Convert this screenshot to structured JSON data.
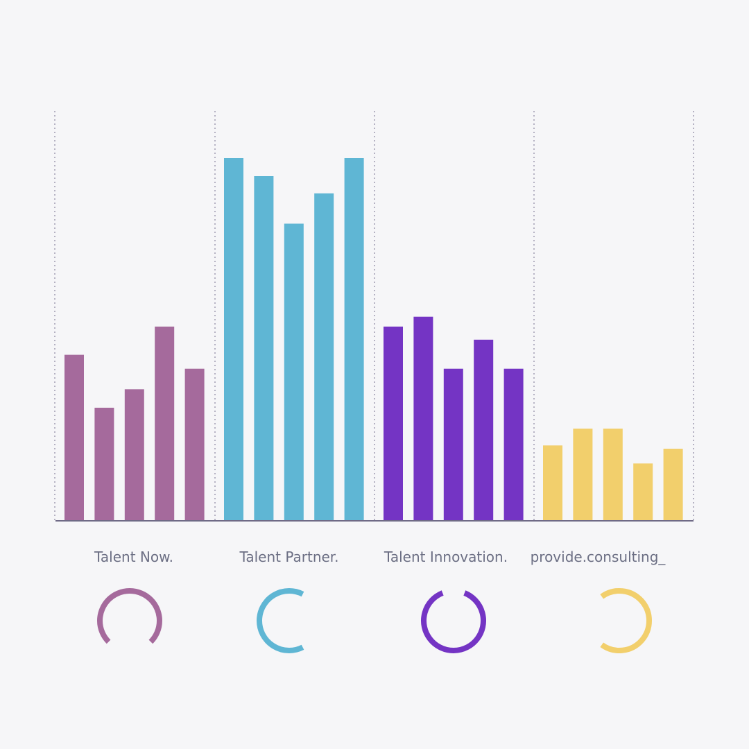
{
  "chart_data": {
    "type": "bar",
    "title": "",
    "xlabel": "",
    "ylabel": "",
    "ylim": [
      0,
      100
    ],
    "grid": false,
    "groups": [
      {
        "name": "Talent Now.",
        "color": "#a56a9c",
        "values": [
          40.5,
          27.6,
          32.1,
          47.4,
          37.1
        ],
        "ring_fraction": 0.75
      },
      {
        "name": "Talent Partner.",
        "color": "#5fb6d4",
        "values": [
          88.5,
          84.1,
          72.5,
          79.9,
          88.5
        ],
        "ring_fraction": 0.65
      },
      {
        "name": "Talent Innovation.",
        "color": "#7434c4",
        "values": [
          47.4,
          49.8,
          37.1,
          44.2,
          37.1
        ],
        "ring_fraction": 0.88
      },
      {
        "name": "provide.consulting_",
        "color": "#f2cf6c",
        "values": [
          18.4,
          22.5,
          22.5,
          14.0,
          17.6
        ],
        "ring_fraction": 0.7
      }
    ],
    "axis_color": "#6f6a86",
    "divider_color": "#9e9ab0",
    "ring_background": "#ffffff"
  }
}
